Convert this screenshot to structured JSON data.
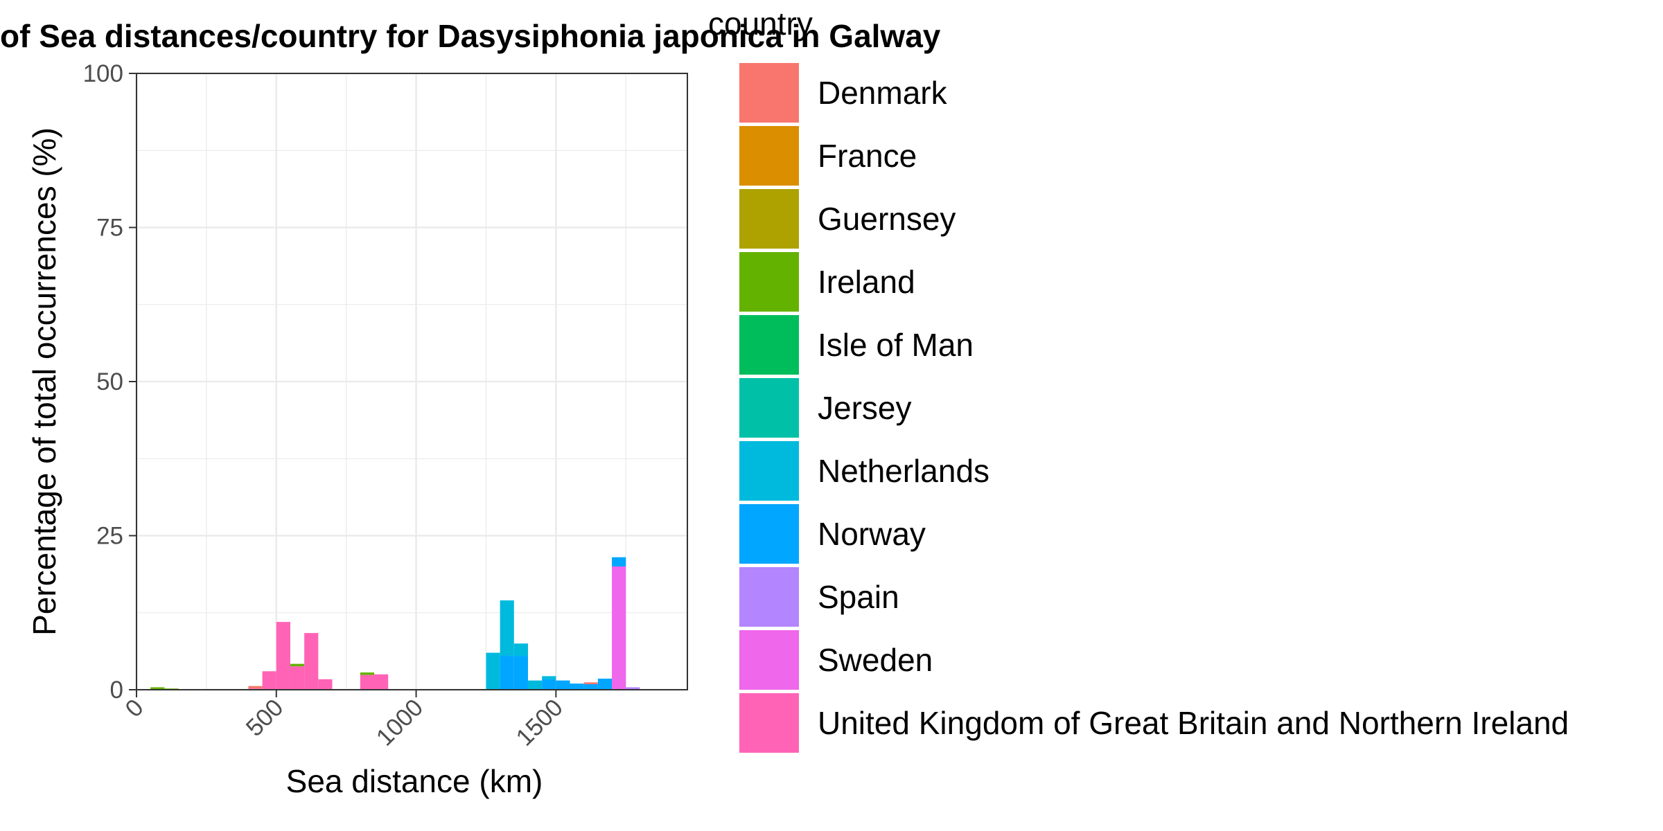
{
  "chart_data": {
    "type": "bar",
    "stacked": true,
    "title": "of Sea distances/country for Dasysiphonia japonica in Galway",
    "xlabel": "Sea distance (km)",
    "ylabel": "Percentage of total occurrences (%)",
    "xlim": [
      0,
      1970
    ],
    "ylim": [
      0,
      100
    ],
    "x_ticks": [
      0,
      500,
      1000,
      1500
    ],
    "x_tick_labels": [
      "0",
      "500",
      "1000",
      "1500"
    ],
    "y_ticks": [
      0,
      25,
      50,
      75,
      100
    ],
    "y_tick_labels": [
      "0",
      "25",
      "50",
      "75",
      "100"
    ],
    "bin_width": 50,
    "grid": true,
    "legend_title": "country",
    "legend_position": "right",
    "colors": {
      "Denmark": "#F8766D",
      "France": "#DB8E00",
      "Guernsey": "#AEA200",
      "Ireland": "#64B200",
      "Isle of Man": "#00BD5C",
      "Jersey": "#00C1A7",
      "Netherlands": "#00BADE",
      "Norway": "#00A6FF",
      "Spain": "#B385FF",
      "Sweden": "#EF67EB",
      "United Kingdom of Great Britain and Northern Ireland": "#FF63B6"
    },
    "series": [
      {
        "name": "Denmark",
        "values": [
          {
            "x": 425,
            "y": 0.4
          },
          {
            "x": 1625,
            "y": 0.3
          }
        ]
      },
      {
        "name": "France",
        "values": []
      },
      {
        "name": "Guernsey",
        "values": []
      },
      {
        "name": "Ireland",
        "values": [
          {
            "x": 75,
            "y": 0.4
          },
          {
            "x": 125,
            "y": 0.2
          },
          {
            "x": 575,
            "y": 0.4
          },
          {
            "x": 825,
            "y": 0.4
          }
        ]
      },
      {
        "name": "Isle of Man",
        "values": []
      },
      {
        "name": "Jersey",
        "values": []
      },
      {
        "name": "Netherlands",
        "values": [
          {
            "x": 1275,
            "y": 6.0
          },
          {
            "x": 1325,
            "y": 9.0
          },
          {
            "x": 1375,
            "y": 2.0
          },
          {
            "x": 1425,
            "y": 1.5
          },
          {
            "x": 1475,
            "y": 0.5
          }
        ]
      },
      {
        "name": "Norway",
        "values": [
          {
            "x": 1325,
            "y": 5.5
          },
          {
            "x": 1375,
            "y": 5.5
          },
          {
            "x": 1475,
            "y": 1.7
          },
          {
            "x": 1525,
            "y": 1.5
          },
          {
            "x": 1575,
            "y": 1.0
          },
          {
            "x": 1625,
            "y": 0.9
          },
          {
            "x": 1675,
            "y": 1.8
          },
          {
            "x": 1725,
            "y": 1.5
          }
        ]
      },
      {
        "name": "Spain",
        "values": [
          {
            "x": 1775,
            "y": 0.4
          }
        ]
      },
      {
        "name": "Sweden",
        "values": [
          {
            "x": 1725,
            "y": 20.0
          }
        ]
      },
      {
        "name": "United Kingdom of Great Britain and Northern Ireland",
        "values": [
          {
            "x": 425,
            "y": 0.2
          },
          {
            "x": 475,
            "y": 3.0
          },
          {
            "x": 525,
            "y": 11.0
          },
          {
            "x": 575,
            "y": 3.8
          },
          {
            "x": 625,
            "y": 9.2
          },
          {
            "x": 675,
            "y": 1.7
          },
          {
            "x": 825,
            "y": 2.4
          },
          {
            "x": 875,
            "y": 2.5
          }
        ]
      }
    ]
  }
}
